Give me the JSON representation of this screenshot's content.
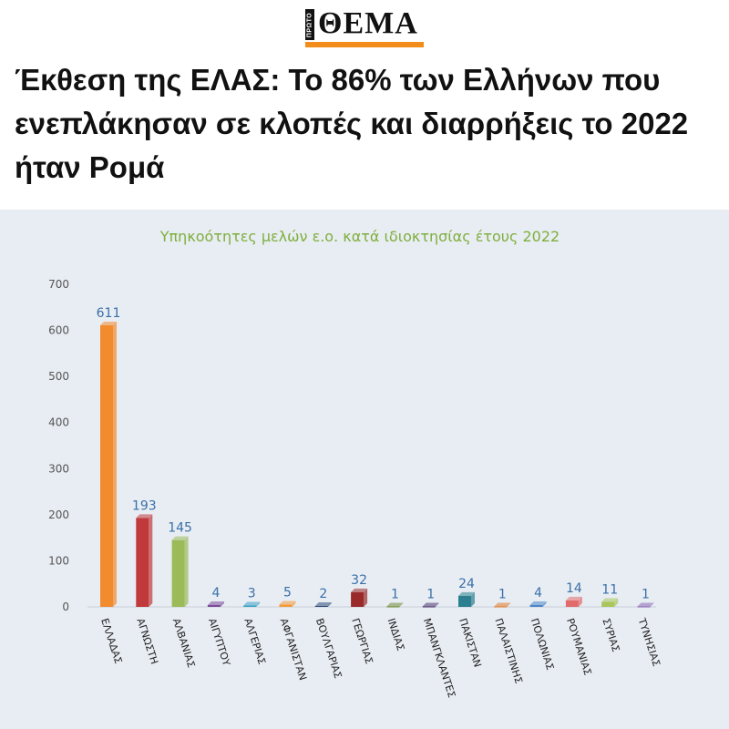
{
  "header": {
    "logo_text": "ΘΕΜΑ",
    "logo_prefix": "ΠΡΩΤΟ",
    "headline": "Έκθεση της ΕΛΑΣ: Το 86% των Ελλήνων που ενεπλάκησαν σε κλοπές και διαρρήξεις το 2022 ήταν Ρομά"
  },
  "colors": {
    "brand_orange": "#f28c1a",
    "chart_bg": "#e8edf3",
    "title_green": "#7fae3d",
    "label_blue": "#3a6fa8"
  },
  "chart_data": {
    "type": "bar",
    "title": "Υπηκοότητες μελών ε.ο. κατά ιδιοκτησίας έτους 2022",
    "xlabel": "",
    "ylabel": "",
    "ylim": [
      0,
      700
    ],
    "yticks": [
      0,
      100,
      200,
      300,
      400,
      500,
      600,
      700
    ],
    "grid": false,
    "categories": [
      "ΕΛΛΑΔΑΣ",
      "ΑΓΝΩΣΤΗ",
      "ΑΛΒΑΝΙΑΣ",
      "ΑΙΓΥΠΤΟΥ",
      "ΑΛΓΕΡΙΑΣ",
      "ΑΦΓΑΝΙΣΤΑΝ",
      "ΒΟΥΛΓΑΡΙΑΣ",
      "ΓΕΩΡΓΙΑΣ",
      "ΙΝΔΙΑΣ",
      "ΜΠΑΝΓΚΛΑΝΤΕΣ",
      "ΠΑΚΙΣΤΑΝ",
      "ΠΑΛΑΙΣΤΙΝΗΣ",
      "ΠΟΛΩΝΙΑΣ",
      "ΡΟΥΜΑΝΙΑΣ",
      "ΣΥΡΙΑΣ",
      "ΤΥΝΗΣΙΑΣ"
    ],
    "values": [
      611,
      193,
      145,
      4,
      3,
      5,
      2,
      32,
      1,
      1,
      24,
      1,
      4,
      14,
      11,
      1
    ],
    "bar_colors": [
      "#f28a2e",
      "#c0393b",
      "#9bbb59",
      "#7a4b9b",
      "#3aa3c6",
      "#f39b3a",
      "#2c4a78",
      "#9a2a2a",
      "#6f8a35",
      "#4a3470",
      "#2b7f8e",
      "#e07a2a",
      "#4a86c8",
      "#e26a6a",
      "#a8c65a",
      "#8a66b5"
    ]
  }
}
